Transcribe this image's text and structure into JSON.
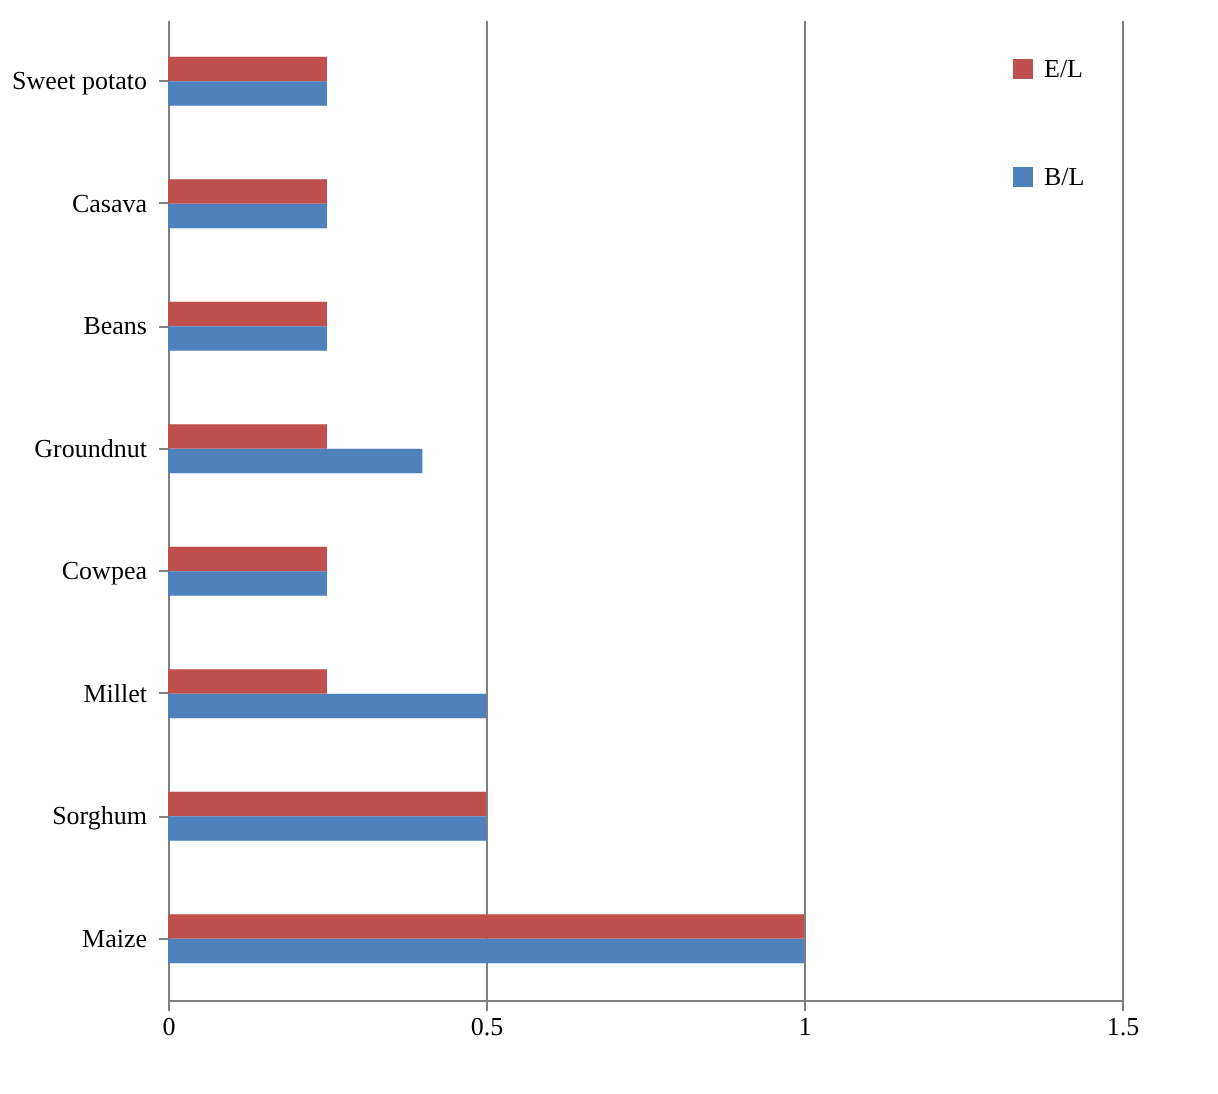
{
  "chart_data": {
    "type": "bar",
    "orientation": "horizontal",
    "categories": [
      "Sweet potato",
      "Casava",
      "Beans",
      "Groundnut",
      "Cowpea",
      "Millet",
      "Sorghum",
      "Maize"
    ],
    "series": [
      {
        "name": "E/L",
        "color": "#c0504d",
        "values": [
          0.25,
          0.25,
          0.25,
          0.25,
          0.25,
          0.25,
          0.5,
          1
        ]
      },
      {
        "name": "B/L",
        "color": "#4f81bd",
        "values": [
          0.25,
          0.25,
          0.25,
          0.4,
          0.25,
          0.5,
          0.5,
          1
        ]
      }
    ],
    "xlim": [
      0,
      1.5
    ],
    "xticks": [
      0,
      0.5,
      1,
      1.5
    ],
    "grid": "x",
    "legend": "top right"
  }
}
